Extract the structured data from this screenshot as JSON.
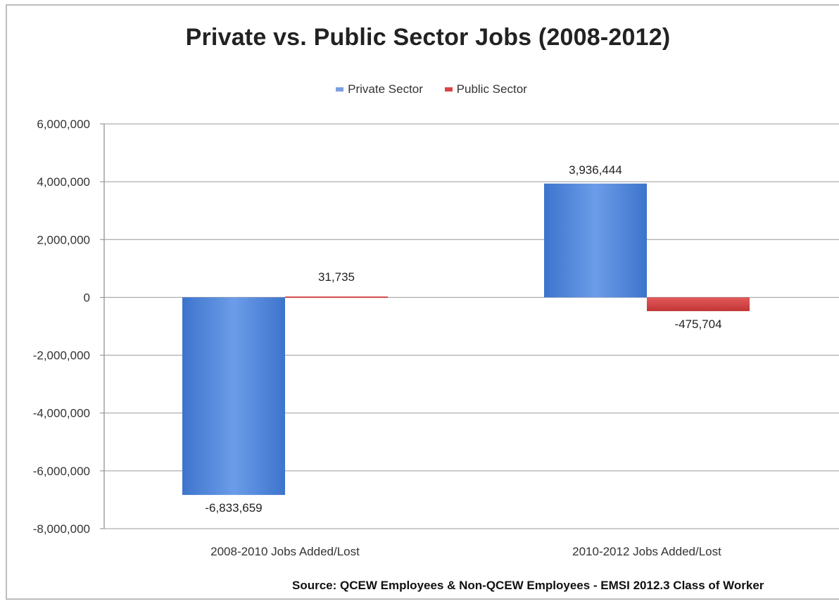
{
  "chart_data": {
    "type": "bar",
    "title": "Private vs. Public Sector Jobs (2008-2012)",
    "categories": [
      "2008-2010 Jobs Added/Lost",
      "2010-2012 Jobs Added/Lost"
    ],
    "series": [
      {
        "name": "Private Sector",
        "color": "#4a86dc",
        "values": [
          -6833659,
          3936444
        ],
        "labels": [
          "-6,833,659",
          "3,936,444"
        ]
      },
      {
        "name": "Public Sector",
        "color": "#d94545",
        "values": [
          31735,
          -475704
        ],
        "labels": [
          "31,735",
          "-475,704"
        ]
      }
    ],
    "ylim": [
      -8000000,
      6000000
    ],
    "yticks": [
      6000000,
      4000000,
      2000000,
      0,
      -2000000,
      -4000000,
      -6000000,
      -8000000
    ],
    "ytick_labels": [
      "6,000,000",
      "4,000,000",
      "2,000,000",
      "0",
      "-2,000,000",
      "-4,000,000",
      "-6,000,000",
      "-8,000,000"
    ],
    "grid": true,
    "legend_position": "top",
    "xlabel": "",
    "ylabel": ""
  },
  "source_note": "Source: QCEW Employees & Non-QCEW Employees - EMSI 2012.3 Class of Worker"
}
